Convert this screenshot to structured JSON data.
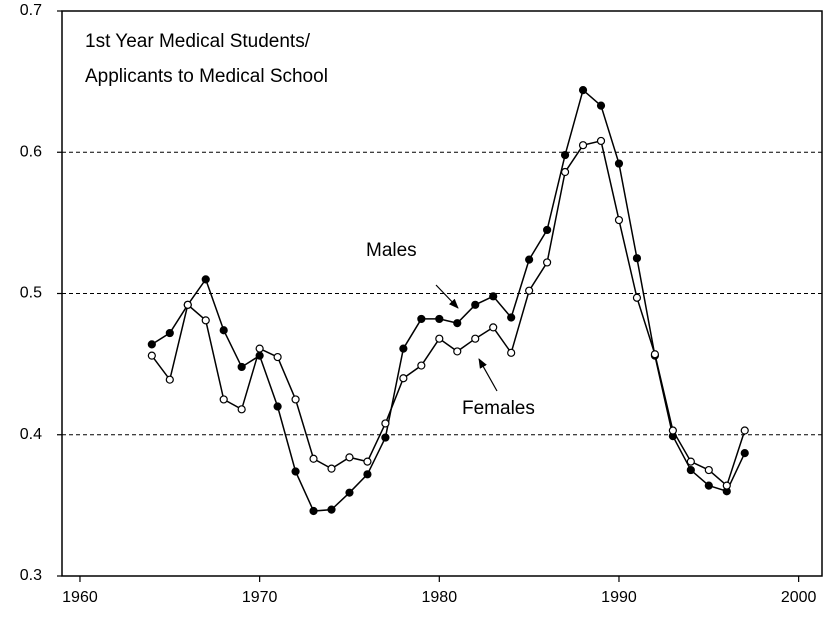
{
  "chart_data": {
    "type": "line",
    "title": "1st Year Medical Students/",
    "subtitle": "Applicants to Medical School",
    "x": [
      1964,
      1965,
      1966,
      1967,
      1968,
      1969,
      1970,
      1971,
      1972,
      1973,
      1974,
      1975,
      1976,
      1977,
      1978,
      1979,
      1980,
      1981,
      1982,
      1983,
      1984,
      1985,
      1986,
      1987,
      1988,
      1989,
      1990,
      1991,
      1992,
      1993,
      1994,
      1995,
      1996,
      1997
    ],
    "series": [
      {
        "name": "Males",
        "color": "#000000",
        "filled": true,
        "values": [
          0.464,
          0.472,
          0.492,
          0.51,
          0.474,
          0.448,
          0.456,
          0.42,
          0.374,
          0.346,
          0.347,
          0.359,
          0.372,
          0.398,
          0.461,
          0.482,
          0.482,
          0.479,
          0.492,
          0.498,
          0.483,
          0.524,
          0.545,
          0.598,
          0.644,
          0.633,
          0.592,
          0.525,
          0.456,
          0.399,
          0.375,
          0.364,
          0.36,
          0.387
        ]
      },
      {
        "name": "Females",
        "color": "#000000",
        "filled": false,
        "values": [
          0.456,
          0.439,
          0.492,
          0.481,
          0.425,
          0.418,
          0.461,
          0.455,
          0.425,
          0.383,
          0.376,
          0.384,
          0.381,
          0.408,
          0.44,
          0.449,
          0.468,
          0.459,
          0.468,
          0.476,
          0.458,
          0.502,
          0.522,
          0.586,
          0.605,
          0.608,
          0.552,
          0.497,
          0.457,
          0.403,
          0.381,
          0.375,
          0.364,
          0.403
        ]
      }
    ],
    "xlim": [
      1959,
      2001.3
    ],
    "xticks": [
      1960,
      1970,
      1980,
      1990,
      2000
    ],
    "ylim": [
      0.3,
      0.7
    ],
    "yticks": [
      0.3,
      0.4,
      0.5,
      0.6,
      0.7
    ],
    "grid": true
  }
}
